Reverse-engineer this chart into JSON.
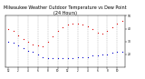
{
  "title": "Milwaukee Weather Outdoor Temperature vs Dew Point (24 Hours)",
  "title_fontsize": 3.5,
  "temp_color": "#dd0000",
  "dew_color": "#0000cc",
  "background_color": "#ffffff",
  "grid_color": "#999999",
  "hours": [
    0,
    1,
    2,
    3,
    4,
    5,
    6,
    7,
    8,
    9,
    10,
    11,
    12,
    13,
    14,
    15,
    16,
    17,
    18,
    19,
    20,
    21,
    22,
    23
  ],
  "temp": [
    40,
    38,
    35,
    32,
    30,
    28,
    27,
    26,
    30,
    34,
    38,
    41,
    43,
    44,
    44,
    43,
    42,
    40,
    37,
    36,
    38,
    41,
    44,
    46
  ],
  "dew": [
    30,
    29,
    27,
    25,
    23,
    22,
    20,
    18,
    17,
    17,
    17,
    17,
    17,
    17,
    18,
    18,
    18,
    19,
    19,
    20,
    20,
    21,
    22,
    22
  ],
  "ylim": [
    10,
    50
  ],
  "ytick_vals": [
    20,
    30,
    40,
    50
  ],
  "xtick_positions": [
    0,
    2,
    4,
    6,
    8,
    10,
    12,
    14,
    16,
    18,
    20,
    22
  ],
  "xtick_labels": [
    "12",
    "2",
    "4",
    "6",
    "8",
    "10",
    "12",
    "2",
    "4",
    "6",
    "8",
    "10"
  ],
  "vgrid_positions": [
    2,
    4,
    6,
    8,
    10,
    12,
    14,
    16,
    18,
    20,
    22
  ]
}
